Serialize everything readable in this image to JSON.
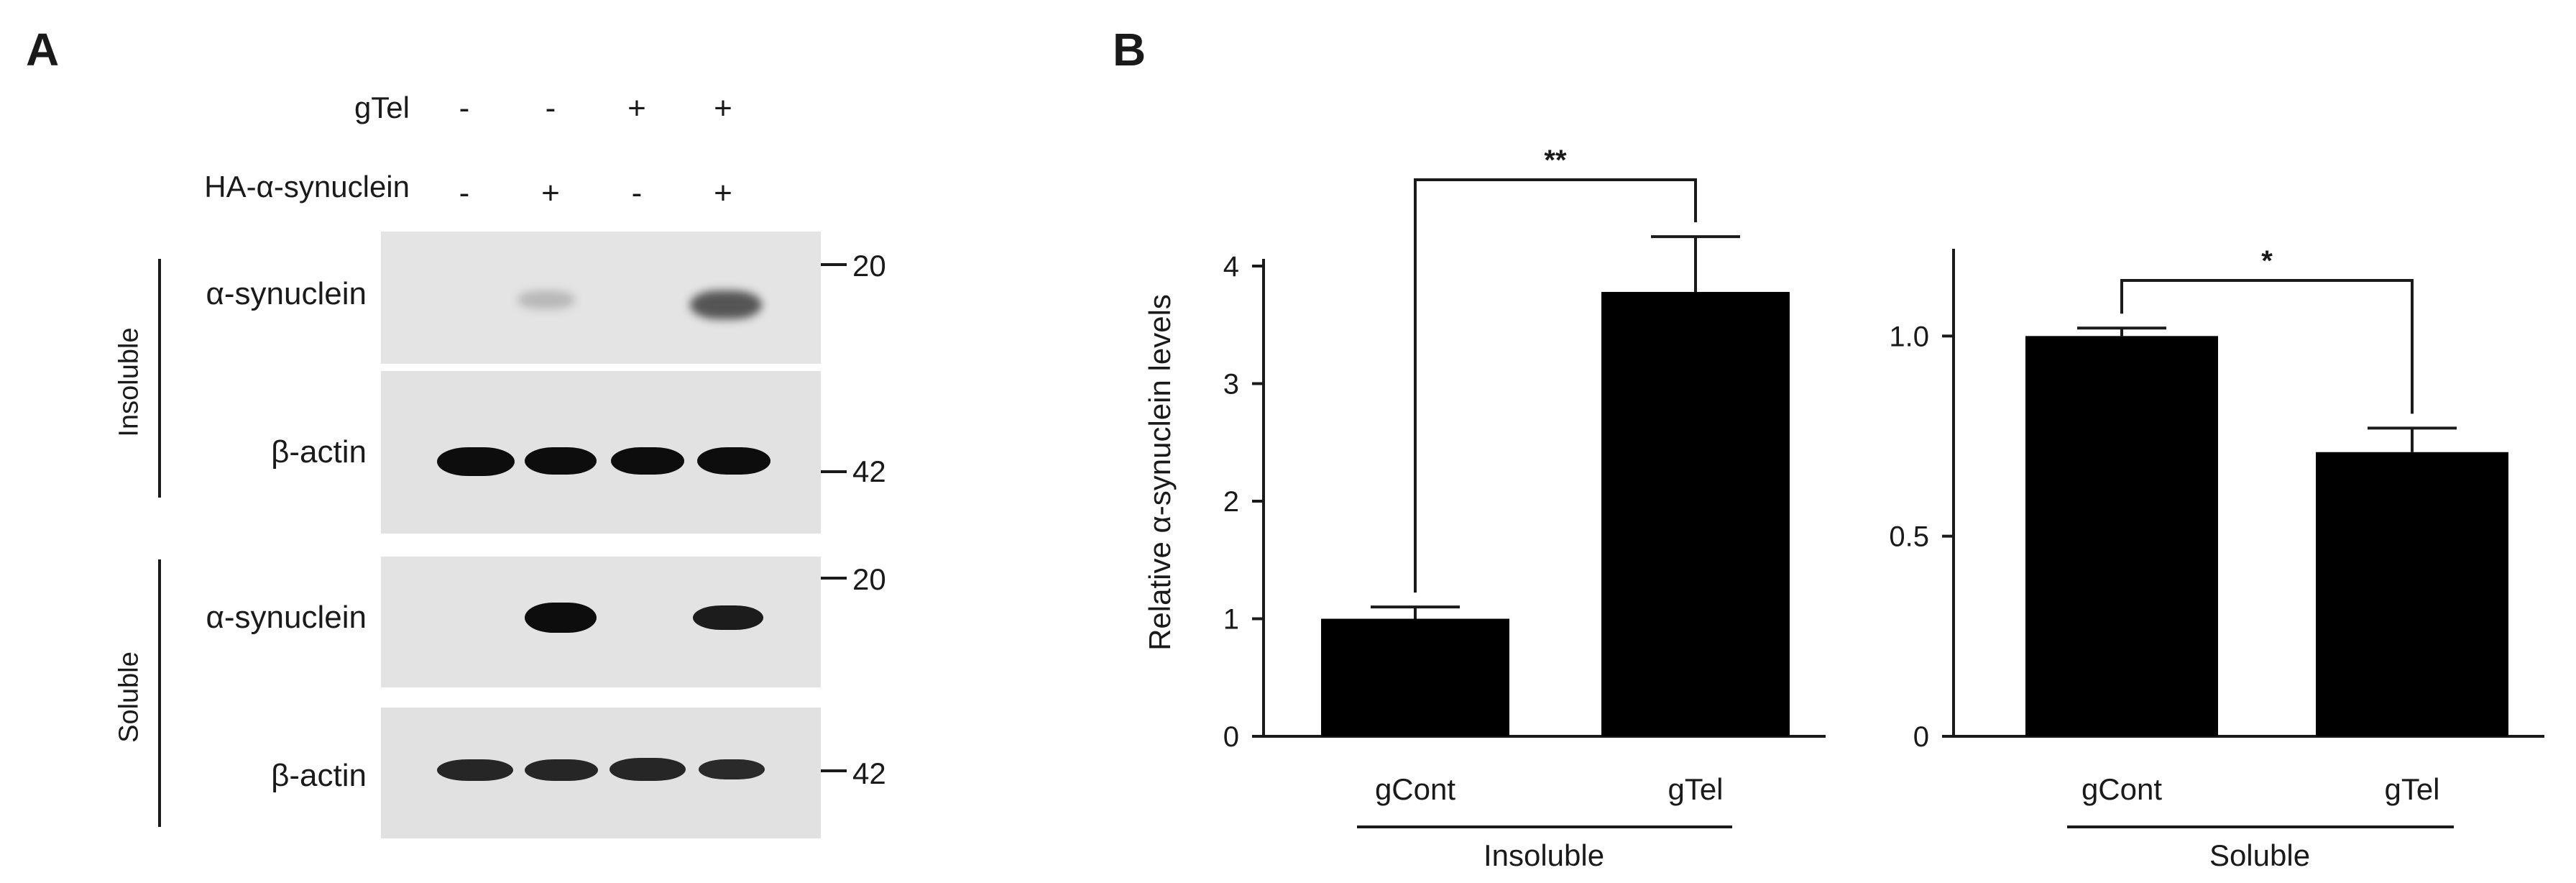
{
  "panel_a": {
    "label": "A",
    "rows": [
      {
        "name": "gTel",
        "signs": [
          "-",
          "-",
          "+",
          "+"
        ]
      },
      {
        "name": "HA-α-synuclein",
        "signs": [
          "-",
          "+",
          "-",
          "+"
        ]
      }
    ],
    "fractions": [
      "Insoluble",
      "Soluble"
    ],
    "blots": [
      {
        "label": "α-synuclein",
        "marker": "20"
      },
      {
        "label": "β-actin",
        "marker": "42"
      },
      {
        "label": "α-synuclein",
        "marker": "20"
      },
      {
        "label": "β-actin",
        "marker": "42"
      }
    ]
  },
  "panel_b": {
    "label": "B"
  },
  "chart_data": [
    {
      "type": "bar",
      "title": "",
      "categories": [
        "gCont",
        "gTel"
      ],
      "values": [
        1.0,
        3.78
      ],
      "errors": [
        0.1,
        0.47
      ],
      "group_label": "Insoluble",
      "ylabel": "Relative α-synuclein levels",
      "ylim": [
        0,
        4
      ],
      "yticks": [
        "0",
        "1",
        "2",
        "3",
        "4"
      ],
      "significance": "**"
    },
    {
      "type": "bar",
      "title": "",
      "categories": [
        "gCont",
        "gTel"
      ],
      "values": [
        1.0,
        0.71
      ],
      "errors": [
        0.02,
        0.06
      ],
      "group_label": "Soluble",
      "ylabel": "",
      "ylim": [
        0,
        1.2
      ],
      "yticks": [
        "0",
        "0.5",
        "1.0"
      ],
      "significance": "*"
    }
  ]
}
